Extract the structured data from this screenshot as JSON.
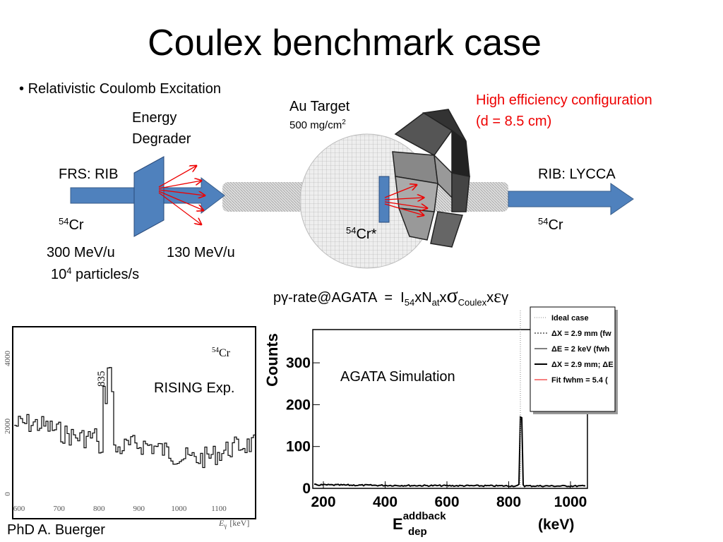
{
  "title": "Coulex benchmark case",
  "bullet": "Relativistic Coulomb Excitation",
  "degrader": [
    "Energy",
    "Degrader"
  ],
  "target": {
    "name": "Au Target",
    "thickness": "500 mg/cm",
    "thickness_sup": "2"
  },
  "config": [
    "High efficiency configuration",
    "(d = 8.5 cm)"
  ],
  "beam_in": "FRS: RIB",
  "beam_out": "RIB: LYCCA",
  "isotope_in": {
    "mass": "54",
    "element": "Cr"
  },
  "isotope_excited": {
    "mass": "54",
    "element": "Cr*"
  },
  "isotope_out": {
    "mass": "54",
    "element": "Cr"
  },
  "energy_in": "300 MeV/u",
  "energy_out": "130 MeV/u",
  "rate": {
    "base": "10",
    "exp": "4",
    "unit": " particles/s"
  },
  "formula": {
    "lead": "pγ-rate@AGATA  =  I",
    "sub1": "54",
    "x1": "xN",
    "sub2": "at",
    "x2": "x",
    "sigma": "σ",
    "sub3": "Coulex",
    "x3": "x",
    "eps": "ε",
    "gamma": "γ"
  },
  "rising_plot": {
    "yticks": [
      "0",
      "2000",
      "4000"
    ],
    "xticks": [
      "600",
      "700",
      "800",
      "900",
      "1000",
      "1100"
    ],
    "peak_label": "835",
    "isotope": {
      "mass": "54",
      "element": "Cr"
    },
    "xlabel": {
      "base": "E",
      "sub": "γ",
      "unit": "[keV]"
    },
    "annotation": "RISING Exp."
  },
  "agata_plot": {
    "yticks": [
      "0",
      "100",
      "200",
      "300"
    ],
    "xticks": [
      "200",
      "400",
      "600",
      "800",
      "1000"
    ],
    "ylabel": "Counts",
    "xlabel": {
      "base": "E",
      "sup": "addback",
      "sub": "dep",
      "unit": "(keV)"
    },
    "annotation": "AGATA Simulation",
    "legend": [
      "Ideal case",
      "ΔX = 2.9 mm (fw",
      "ΔE = 2 keV (fwh",
      "ΔX = 2.9 mm; ΔE",
      "Fit fwhm = 5.4 ("
    ]
  },
  "credit": "PhD  A. Buerger"
}
